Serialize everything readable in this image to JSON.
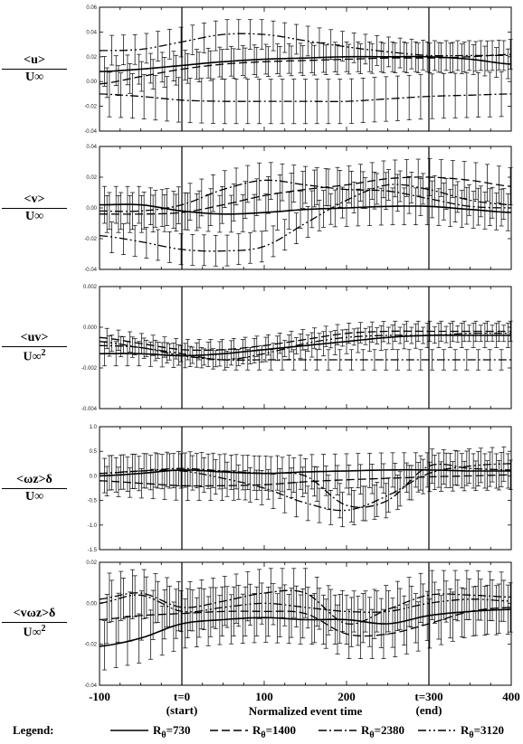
{
  "chart_data": {
    "type": "line",
    "xlabel": "Normalized event time",
    "x_ticks": [
      "-100",
      "t=0",
      "100",
      "200",
      "t=300",
      "400"
    ],
    "x_tick_sub": [
      "",
      "(start)",
      "",
      "",
      "(end)",
      ""
    ],
    "x_tick_values": [
      -100,
      0,
      100,
      200,
      300,
      400
    ],
    "xlim": [
      -100,
      400
    ],
    "event_lines": [
      0,
      300
    ],
    "legend_prefix": "Legend:",
    "series_styles": [
      {
        "name": "Rθ=730",
        "label_main": "R",
        "label_sub": "θ",
        "label_val": "=730",
        "dash": "solid"
      },
      {
        "name": "Rθ=1400",
        "label_main": "R",
        "label_sub": "θ",
        "label_val": "=1400",
        "dash": "dashed"
      },
      {
        "name": "Rθ=2380",
        "label_main": "R",
        "label_sub": "θ",
        "label_val": "=2380",
        "dash": "dashdot"
      },
      {
        "name": "Rθ=3120",
        "label_main": "R",
        "label_sub": "θ",
        "label_val": "=3120",
        "dash": "dashdotdot"
      }
    ],
    "panels": [
      {
        "id": "u",
        "ylabel_num": "<u>",
        "ylabel_den": "U∞",
        "ylim": [
          -0.04,
          0.06
        ],
        "y_ticks": [
          -0.04,
          -0.02,
          0.0,
          0.02,
          0.04,
          0.06
        ],
        "y_tick_labels": [
          "-0.04",
          "-0.02",
          "0.00",
          "0.02",
          "0.04",
          "0.06"
        ],
        "x": [
          -100,
          -50,
          0,
          50,
          100,
          150,
          200,
          250,
          300,
          350,
          400
        ],
        "series": [
          {
            "name": "Rθ=730",
            "values": [
              0.008,
              0.01,
              0.013,
              0.016,
              0.018,
              0.019,
              0.02,
              0.02,
              0.02,
              0.018,
              0.014
            ],
            "err": 0.012
          },
          {
            "name": "Rθ=1400",
            "values": [
              -0.002,
              0.004,
              0.01,
              0.014,
              0.016,
              0.017,
              0.018,
              0.019,
              0.019,
              0.02,
              0.022
            ],
            "err": 0.012
          },
          {
            "name": "Rθ=2380",
            "values": [
              -0.01,
              -0.012,
              -0.015,
              -0.016,
              -0.016,
              -0.016,
              -0.016,
              -0.014,
              -0.012,
              -0.011,
              -0.01
            ],
            "err": 0.018
          },
          {
            "name": "Rθ=3120",
            "values": [
              0.025,
              0.026,
              0.032,
              0.038,
              0.038,
              0.033,
              0.028,
              0.024,
              0.021,
              0.021,
              0.021
            ],
            "err": 0.012
          }
        ]
      },
      {
        "id": "v",
        "ylabel_num": "<v>",
        "ylabel_den": "U∞",
        "ylim": [
          -0.04,
          0.04
        ],
        "y_ticks": [
          -0.04,
          -0.02,
          0.0,
          0.02,
          0.04
        ],
        "y_tick_labels": [
          "-0.04",
          "-0.02",
          "0.00",
          "0.02",
          "0.04"
        ],
        "x": [
          -100,
          -50,
          0,
          50,
          100,
          150,
          200,
          250,
          300,
          350,
          400
        ],
        "series": [
          {
            "name": "Rθ=730",
            "values": [
              0.002,
              0.002,
              -0.002,
              -0.004,
              -0.003,
              -0.001,
              0.0,
              0.001,
              0.001,
              -0.001,
              -0.003
            ],
            "err": 0.012
          },
          {
            "name": "Rθ=1400",
            "values": [
              -0.004,
              -0.004,
              -0.003,
              0.002,
              0.008,
              0.012,
              0.015,
              0.019,
              0.02,
              0.018,
              0.014
            ],
            "err": 0.012
          },
          {
            "name": "Rθ=2380",
            "values": [
              -0.002,
              -0.002,
              0.002,
              0.012,
              0.018,
              0.015,
              0.012,
              0.011,
              0.006,
              0.001,
              0.0
            ],
            "err": 0.012
          },
          {
            "name": "Rθ=3120",
            "values": [
              -0.018,
              -0.022,
              -0.027,
              -0.028,
              -0.025,
              -0.01,
              0.005,
              0.015,
              0.012,
              0.005,
              0.002
            ],
            "err": 0.01
          }
        ]
      },
      {
        "id": "uv",
        "ylabel_num": "<uv>",
        "ylabel_den": "U∞",
        "ylabel_den_sup": "2",
        "ylim": [
          -0.004,
          0.002
        ],
        "y_ticks": [
          -0.004,
          -0.002,
          0.0,
          0.002
        ],
        "y_tick_labels": [
          "-0.004",
          "-0.002",
          "0.000",
          "0.002"
        ],
        "x": [
          -100,
          -50,
          0,
          50,
          100,
          150,
          200,
          250,
          300,
          350,
          400
        ],
        "series": [
          {
            "name": "Rθ=730",
            "values": [
              -0.0013,
              -0.0013,
              -0.0014,
              -0.0013,
              -0.0011,
              -0.0009,
              -0.0007,
              -0.0005,
              -0.0004,
              -0.0004,
              -0.0004
            ],
            "err": 0.0006
          },
          {
            "name": "Rθ=1400",
            "values": [
              -0.0005,
              -0.0008,
              -0.0011,
              -0.0011,
              -0.0009,
              -0.0006,
              -0.0003,
              -0.0002,
              -0.0002,
              -0.0002,
              -0.0002
            ],
            "err": 0.0005
          },
          {
            "name": "Rθ=2380",
            "values": [
              -0.0009,
              -0.001,
              -0.0014,
              -0.0016,
              -0.0016,
              -0.0016,
              -0.0016,
              -0.0016,
              -0.0016,
              -0.0016,
              -0.0016
            ],
            "err": 0.0005
          },
          {
            "name": "Rθ=3120",
            "values": [
              -0.0007,
              -0.001,
              -0.0013,
              -0.0016,
              -0.0013,
              -0.0008,
              -0.0005,
              -0.0004,
              -0.0004,
              -0.0003,
              -0.0003
            ],
            "err": 0.0004
          }
        ]
      },
      {
        "id": "wz",
        "ylabel_num": "<ωz>δ",
        "ylabel_den": "U∞",
        "ylim": [
          -1.5,
          1.0
        ],
        "y_ticks": [
          -1.5,
          -1.0,
          -0.5,
          0.0,
          0.5,
          1.0
        ],
        "y_tick_labels": [
          "-1.5",
          "-1.0",
          "-0.5",
          "0.0",
          "0.5",
          "1.0"
        ],
        "x": [
          -100,
          -50,
          0,
          50,
          100,
          150,
          200,
          250,
          300,
          350,
          400
        ],
        "series": [
          {
            "name": "Rθ=730",
            "values": [
              0.0,
              0.05,
              0.12,
              0.08,
              0.05,
              0.08,
              0.1,
              0.12,
              0.12,
              0.1,
              0.1
            ],
            "err": 0.35
          },
          {
            "name": "Rθ=1400",
            "values": [
              -0.1,
              -0.15,
              -0.2,
              -0.2,
              -0.18,
              -0.12,
              -0.08,
              -0.05,
              -0.02,
              0.0,
              0.02
            ],
            "err": 0.3
          },
          {
            "name": "Rθ=2380",
            "values": [
              0.05,
              0.1,
              0.15,
              0.1,
              0.05,
              0.0,
              -0.6,
              -0.5,
              0.2,
              0.15,
              0.12
            ],
            "err": 0.35
          },
          {
            "name": "Rθ=3120",
            "values": [
              0.05,
              0.1,
              0.1,
              -0.05,
              -0.25,
              -0.55,
              -0.7,
              -0.4,
              0.05,
              0.2,
              0.25
            ],
            "err": 0.35
          }
        ]
      },
      {
        "id": "vwz",
        "ylabel_num": "<vωz>δ",
        "ylabel_den": "U∞",
        "ylabel_den_sup": "2",
        "ylim": [
          -0.04,
          0.02
        ],
        "y_ticks": [
          -0.04,
          -0.02,
          0.0,
          0.02
        ],
        "y_tick_labels": [
          "-0.04",
          "-0.02",
          "0.00",
          "0.02"
        ],
        "x": [
          -100,
          -50,
          0,
          50,
          100,
          150,
          200,
          250,
          300,
          350,
          400
        ],
        "series": [
          {
            "name": "Rθ=730",
            "values": [
              -0.021,
              -0.017,
              -0.01,
              -0.008,
              -0.007,
              -0.008,
              -0.008,
              -0.01,
              -0.006,
              -0.004,
              -0.003
            ],
            "err": 0.012
          },
          {
            "name": "Rθ=1400",
            "values": [
              -0.008,
              -0.006,
              -0.005,
              -0.004,
              -0.004,
              -0.005,
              -0.015,
              -0.015,
              -0.01,
              -0.004,
              -0.002
            ],
            "err": 0.012
          },
          {
            "name": "Rθ=2380",
            "values": [
              0.002,
              0.005,
              -0.002,
              0.001,
              0.005,
              0.005,
              -0.01,
              -0.003,
              0.004,
              0.004,
              0.003
            ],
            "err": 0.012
          },
          {
            "name": "Rθ=3120",
            "values": [
              0.0,
              0.004,
              -0.004,
              -0.002,
              0.0,
              -0.002,
              -0.004,
              -0.004,
              0.0,
              0.002,
              0.001
            ],
            "err": 0.01
          }
        ]
      }
    ]
  }
}
